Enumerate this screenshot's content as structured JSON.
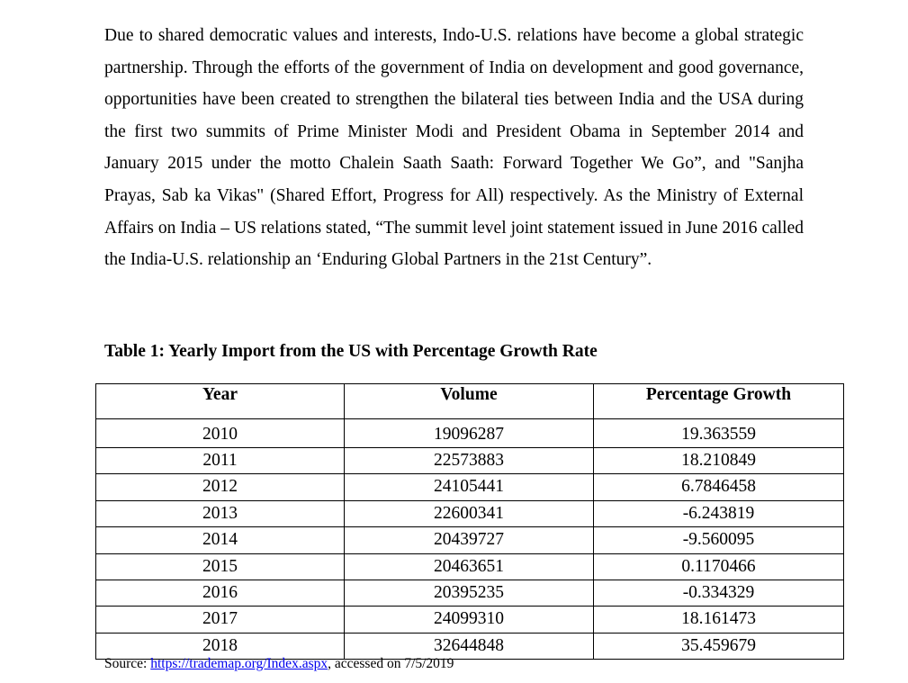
{
  "paragraph": "Due to shared democratic values and interests, Indo-U.S. relations have become a global strategic partnership. Through the efforts of the government of India on development and good governance, opportunities have been created to strengthen the bilateral ties between India and the USA during the first two summits of Prime Minister Modi and President Obama in September 2014 and January 2015 under the motto Chalein Saath Saath: Forward Together We Go”, and \"Sanjha Prayas, Sab ka Vikas\" (Shared Effort, Progress for All) respectively. As the Ministry of External Affairs on India – US relations stated, “The summit level joint statement issued in June 2016 called the India-U.S. relationship an ‘Enduring Global Partners in the 21st Century”.",
  "table": {
    "caption": "Table 1: Yearly Import from the US with Percentage Growth Rate",
    "headers": [
      "Year",
      "Volume",
      "Percentage Growth"
    ],
    "rows": [
      [
        "2010",
        "19096287",
        "19.363559"
      ],
      [
        "2011",
        "22573883",
        "18.210849"
      ],
      [
        "2012",
        "24105441",
        "6.7846458"
      ],
      [
        "2013",
        "22600341",
        "-6.243819"
      ],
      [
        "2014",
        "20439727",
        "-9.560095"
      ],
      [
        "2015",
        "20463651",
        "0.1170466"
      ],
      [
        "2016",
        "20395235",
        "-0.334329"
      ],
      [
        "2017",
        "24099310",
        "18.161473"
      ],
      [
        "2018",
        "32644848",
        "35.459679"
      ]
    ]
  },
  "source": {
    "prefix": "Source: ",
    "link_text": "https://trademap.org/Index.aspx",
    "suffix": ", accessed on 7/5/2019"
  }
}
